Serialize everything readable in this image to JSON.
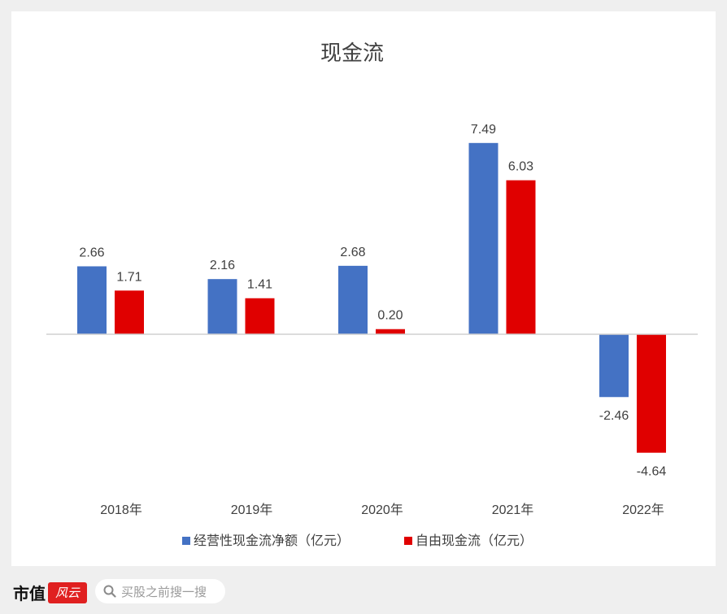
{
  "chart_data": {
    "type": "bar",
    "title": "现金流",
    "categories": [
      "2018年",
      "2019年",
      "2020年",
      "2021年",
      "2022年"
    ],
    "series": [
      {
        "name": "经营性现金流净额（亿元）",
        "color": "#4472c4",
        "values": [
          2.66,
          2.16,
          2.68,
          7.49,
          -2.46
        ]
      },
      {
        "name": "自由现金流（亿元）",
        "color": "#e00000",
        "values": [
          1.71,
          1.41,
          0.2,
          6.03,
          -4.64
        ]
      }
    ],
    "value_labels": [
      [
        "2.66",
        "2.16",
        "2.68",
        "7.49",
        "-2.46"
      ],
      [
        "1.71",
        "1.41",
        "0.20",
        "6.03",
        "-4.64"
      ]
    ],
    "ylim": [
      -5.5,
      8.5
    ],
    "legend_position": "bottom",
    "grid": false
  },
  "footer": {
    "logo_text": "市值",
    "logo_seal": "风云",
    "search_placeholder": "买股之前搜一搜"
  },
  "icons": {
    "search": "magnifier-icon"
  }
}
